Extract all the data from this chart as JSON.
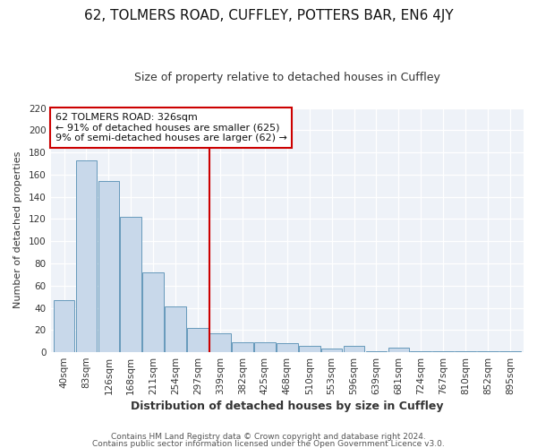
{
  "title1": "62, TOLMERS ROAD, CUFFLEY, POTTERS BAR, EN6 4JY",
  "title2": "Size of property relative to detached houses in Cuffley",
  "xlabel": "Distribution of detached houses by size in Cuffley",
  "ylabel": "Number of detached properties",
  "footer1": "Contains HM Land Registry data © Crown copyright and database right 2024.",
  "footer2": "Contains public sector information licensed under the Open Government Licence v3.0.",
  "annotation_line1": "62 TOLMERS ROAD: 326sqm",
  "annotation_line2": "← 91% of detached houses are smaller (625)",
  "annotation_line3": "9% of semi-detached houses are larger (62) →",
  "bar_color": "#c8d8ea",
  "bar_edge_color": "#6699bb",
  "vline_color": "#cc0000",
  "vline_x": 6.5,
  "categories": [
    "40sqm",
    "83sqm",
    "126sqm",
    "168sqm",
    "211sqm",
    "254sqm",
    "297sqm",
    "339sqm",
    "382sqm",
    "425sqm",
    "468sqm",
    "510sqm",
    "553sqm",
    "596sqm",
    "639sqm",
    "681sqm",
    "724sqm",
    "767sqm",
    "810sqm",
    "852sqm",
    "895sqm"
  ],
  "values": [
    47,
    173,
    154,
    122,
    72,
    41,
    22,
    17,
    9,
    9,
    8,
    6,
    3,
    6,
    1,
    4,
    1,
    1,
    1,
    1,
    1
  ],
  "ylim": [
    0,
    220
  ],
  "yticks": [
    0,
    20,
    40,
    60,
    80,
    100,
    120,
    140,
    160,
    180,
    200,
    220
  ],
  "background_color": "#ffffff",
  "plot_bg_color": "#eef2f8",
  "grid_color": "#ffffff",
  "annotation_box_facecolor": "#ffffff",
  "annotation_box_edgecolor": "#cc0000",
  "text_color": "#333333",
  "title1_fontsize": 11,
  "title2_fontsize": 9,
  "xlabel_fontsize": 9,
  "ylabel_fontsize": 8,
  "tick_fontsize": 7.5,
  "footer_fontsize": 6.5
}
